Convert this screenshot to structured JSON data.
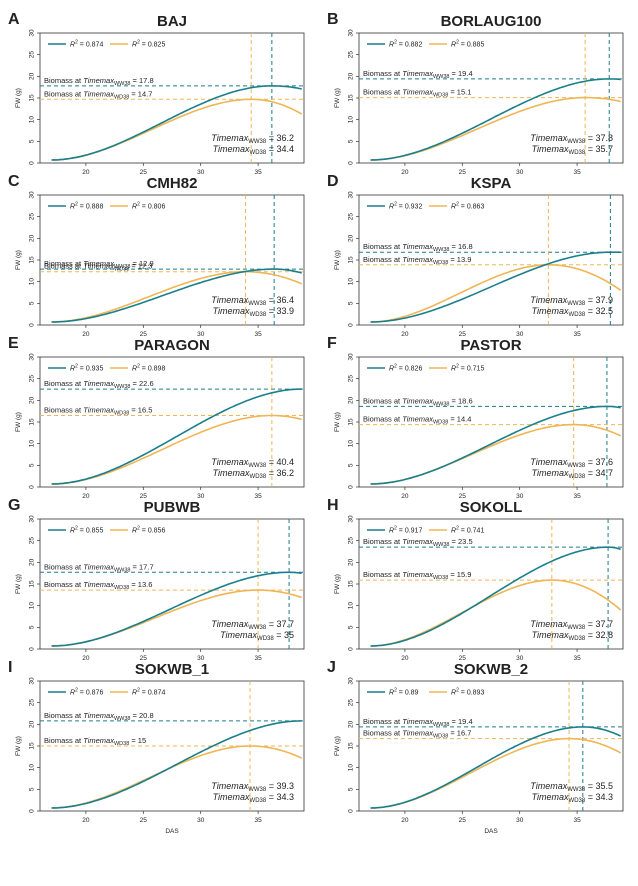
{
  "colors": {
    "ww": "#1a7f8c",
    "wd": "#f0b555",
    "axis": "#333333",
    "text": "#222222"
  },
  "strings": {
    "biomass_prefix": "Biomass at ",
    "timemax": "Timemax",
    "ww_sub": "WW38",
    "wd_sub": "WD38",
    "r2": "R",
    "r2_sup": "2"
  },
  "chart_data": [
    {
      "label": "A",
      "title": "BAJ",
      "type": "line",
      "xlabel": "",
      "ylabel": "FW (g)",
      "xlim": [
        16,
        39
      ],
      "ylim": [
        0,
        30
      ],
      "xticks": [
        20,
        25,
        30,
        35
      ],
      "yticks": [
        0,
        5,
        10,
        15,
        20,
        25,
        30
      ],
      "grid": false,
      "legend": "top-left",
      "series": [
        {
          "name": "R² = 0.874",
          "r2": "0.874",
          "timemax": "36.2",
          "biomass": "17.8",
          "peak": 17.8,
          "end": 17.1
        },
        {
          "name": "R² = 0.825",
          "r2": "0.825",
          "timemax": "34.4",
          "biomass": "14.7",
          "peak": 14.7,
          "end": 11.3
        }
      ]
    },
    {
      "label": "B",
      "title": "BORLAUG100",
      "type": "line",
      "xlabel": "",
      "ylabel": "FW (g)",
      "xlim": [
        16,
        39
      ],
      "ylim": [
        0,
        30
      ],
      "xticks": [
        20,
        25,
        30,
        35
      ],
      "yticks": [
        0,
        5,
        10,
        15,
        20,
        25,
        30
      ],
      "grid": false,
      "legend": "top-left",
      "series": [
        {
          "name": "R² = 0.882",
          "r2": "0.882",
          "timemax": "37.8",
          "biomass": "19.4",
          "peak": 19.4,
          "end": 19.3
        },
        {
          "name": "R² = 0.885",
          "r2": "0.885",
          "timemax": "35.7",
          "biomass": "15.1",
          "peak": 15.1,
          "end": 14.2
        }
      ]
    },
    {
      "label": "C",
      "title": "CMH82",
      "type": "line",
      "xlabel": "",
      "ylabel": "FW (g)",
      "xlim": [
        16,
        39
      ],
      "ylim": [
        0,
        30
      ],
      "xticks": [
        20,
        25,
        30,
        35
      ],
      "yticks": [
        0,
        5,
        10,
        15,
        20,
        25,
        30
      ],
      "grid": false,
      "legend": "top-left",
      "series": [
        {
          "name": "R² = 0.888",
          "r2": "0.888",
          "timemax": "36.4",
          "biomass": "12.9",
          "peak": 12.9,
          "end": 12.0
        },
        {
          "name": "R² = 0.806",
          "r2": "0.806",
          "timemax": "33.9",
          "biomass": "12.3",
          "peak": 12.3,
          "end": 9.5
        }
      ]
    },
    {
      "label": "D",
      "title": "KSPA",
      "type": "line",
      "xlabel": "",
      "ylabel": "FW (g)",
      "xlim": [
        16,
        39
      ],
      "ylim": [
        0,
        30
      ],
      "xticks": [
        20,
        25,
        30,
        35
      ],
      "yticks": [
        0,
        5,
        10,
        15,
        20,
        25,
        30
      ],
      "grid": false,
      "legend": "top-left",
      "series": [
        {
          "name": "R² = 0.932",
          "r2": "0.932",
          "timemax": "37.9",
          "biomass": "16.8",
          "peak": 16.8,
          "end": 16.8
        },
        {
          "name": "R² = 0.863",
          "r2": "0.863",
          "timemax": "32.5",
          "biomass": "13.9",
          "peak": 13.9,
          "end": 8.0
        }
      ]
    },
    {
      "label": "E",
      "title": "PARAGON",
      "type": "line",
      "xlabel": "",
      "ylabel": "FW (g)",
      "xlim": [
        16,
        39
      ],
      "ylim": [
        0,
        30
      ],
      "xticks": [
        20,
        25,
        30,
        35
      ],
      "yticks": [
        0,
        5,
        10,
        15,
        20,
        25,
        30
      ],
      "grid": false,
      "legend": "top-left",
      "series": [
        {
          "name": "R² = 0.935",
          "r2": "0.935",
          "timemax": "40.4",
          "biomass": "22.6",
          "peak": 22.6,
          "end": 22.5
        },
        {
          "name": "R² = 0.898",
          "r2": "0.898",
          "timemax": "36.2",
          "biomass": "16.5",
          "peak": 16.5,
          "end": 15.6
        }
      ]
    },
    {
      "label": "F",
      "title": "PASTOR",
      "type": "line",
      "xlabel": "",
      "ylabel": "FW (g)",
      "xlim": [
        16,
        39
      ],
      "ylim": [
        0,
        30
      ],
      "xticks": [
        20,
        25,
        30,
        35
      ],
      "yticks": [
        0,
        5,
        10,
        15,
        20,
        25,
        30
      ],
      "grid": false,
      "legend": "top-left",
      "series": [
        {
          "name": "R² = 0.826",
          "r2": "0.826",
          "timemax": "37.6",
          "biomass": "18.6",
          "peak": 18.6,
          "end": 18.3
        },
        {
          "name": "R² = 0.715",
          "r2": "0.715",
          "timemax": "34.7",
          "biomass": "14.4",
          "peak": 14.4,
          "end": 11.8
        }
      ]
    },
    {
      "label": "G",
      "title": "PUBWB",
      "type": "line",
      "xlabel": "",
      "ylabel": "FW (g)",
      "xlim": [
        16,
        39
      ],
      "ylim": [
        0,
        30
      ],
      "xticks": [
        20,
        25,
        30,
        35
      ],
      "yticks": [
        0,
        5,
        10,
        15,
        20,
        25,
        30
      ],
      "grid": false,
      "legend": "top-left",
      "series": [
        {
          "name": "R² = 0.855",
          "r2": "0.855",
          "timemax": "37.7",
          "biomass": "17.7",
          "peak": 17.7,
          "end": 17.5
        },
        {
          "name": "R² = 0.856",
          "r2": "0.856",
          "timemax": "35",
          "biomass": "13.6",
          "peak": 13.6,
          "end": 11.9
        }
      ]
    },
    {
      "label": "H",
      "title": "SOKOLL",
      "type": "line",
      "xlabel": "",
      "ylabel": "FW (g)",
      "xlim": [
        16,
        39
      ],
      "ylim": [
        0,
        30
      ],
      "xticks": [
        20,
        25,
        30,
        35
      ],
      "yticks": [
        0,
        5,
        10,
        15,
        20,
        25,
        30
      ],
      "grid": false,
      "legend": "top-left",
      "series": [
        {
          "name": "R² = 0.917",
          "r2": "0.917",
          "timemax": "37.7",
          "biomass": "23.5",
          "peak": 23.5,
          "end": 23.0
        },
        {
          "name": "R² = 0.741",
          "r2": "0.741",
          "timemax": "32.8",
          "biomass": "15.9",
          "peak": 15.9,
          "end": 9.0
        }
      ]
    },
    {
      "label": "I",
      "title": "SOKWB_1",
      "type": "line",
      "xlabel": "DAS",
      "ylabel": "FW (g)",
      "xlim": [
        16,
        39
      ],
      "ylim": [
        0,
        30
      ],
      "xticks": [
        20,
        25,
        30,
        35
      ],
      "yticks": [
        0,
        5,
        10,
        15,
        20,
        25,
        30
      ],
      "grid": false,
      "legend": "top-left",
      "series": [
        {
          "name": "R² = 0.876",
          "r2": "0.876",
          "timemax": "39.3",
          "biomass": "20.8",
          "peak": 20.8,
          "end": 20.8
        },
        {
          "name": "R² = 0.874",
          "r2": "0.874",
          "timemax": "34.3",
          "biomass": "15",
          "peak": 15.0,
          "end": 12.2
        }
      ]
    },
    {
      "label": "J",
      "title": "SOKWB_2",
      "type": "line",
      "xlabel": "DAS",
      "ylabel": "FW (g)",
      "xlim": [
        16,
        39
      ],
      "ylim": [
        0,
        30
      ],
      "xticks": [
        20,
        25,
        30,
        35
      ],
      "yticks": [
        0,
        5,
        10,
        15,
        20,
        25,
        30
      ],
      "grid": false,
      "legend": "top-left",
      "series": [
        {
          "name": "R² = 0.89",
          "r2": "0.89",
          "timemax": "35.5",
          "biomass": "19.4",
          "peak": 19.4,
          "end": 17.3
        },
        {
          "name": "R² = 0.893",
          "r2": "0.893",
          "timemax": "34.3",
          "biomass": "16.7",
          "peak": 16.7,
          "end": 13.4
        }
      ]
    }
  ]
}
